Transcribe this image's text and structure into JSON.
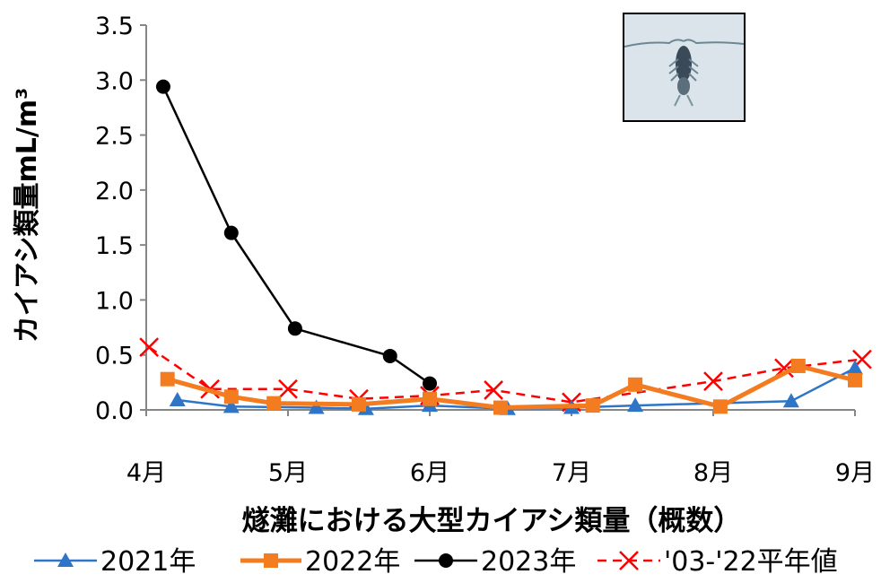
{
  "chart_data": {
    "type": "line",
    "title": "",
    "xlabel": "燧灘における大型カイアシ類量（概数）",
    "ylabel": "カイアシ類量mL/m³",
    "ylim": [
      0,
      3.5
    ],
    "yticks": [
      "0.0",
      "0.5",
      "1.0",
      "1.5",
      "2.0",
      "2.5",
      "3.0",
      "3.5"
    ],
    "yticks_values": [
      0,
      0.5,
      1,
      1.5,
      2,
      2.5,
      3,
      3.5
    ],
    "xlim": [
      4,
      9
    ],
    "xticks": [
      "4月",
      "5月",
      "6月",
      "7月",
      "8月",
      "9月"
    ],
    "xticks_values": [
      4,
      5,
      6,
      7,
      8,
      9
    ],
    "grid": false,
    "legend_position": "bottom",
    "series": [
      {
        "name": "2021年",
        "color": "#2e75c8",
        "marker": "triangle",
        "dash": "none",
        "x": [
          4.22,
          4.6,
          5.2,
          5.55,
          6.0,
          6.55,
          7.0,
          7.45,
          8.55,
          9.0
        ],
        "y": [
          0.09,
          0.03,
          0.02,
          0.01,
          0.04,
          0.01,
          0.02,
          0.04,
          0.08,
          0.38
        ]
      },
      {
        "name": "2022年",
        "color": "#f47c20",
        "marker": "square",
        "dash": "none",
        "x": [
          4.15,
          4.6,
          4.9,
          5.5,
          6.0,
          6.5,
          7.15,
          7.45,
          8.05,
          8.6,
          9.0
        ],
        "y": [
          0.28,
          0.12,
          0.06,
          0.05,
          0.1,
          0.02,
          0.04,
          0.23,
          0.03,
          0.4,
          0.27
        ]
      },
      {
        "name": "2023年",
        "color": "#000000",
        "marker": "circle",
        "dash": "none",
        "x": [
          4.12,
          4.6,
          5.05,
          5.72,
          6.0
        ],
        "y": [
          2.94,
          1.61,
          0.74,
          0.49,
          0.24
        ]
      },
      {
        "name": "'03-'22平年値",
        "color": "#ff0000",
        "marker": "x",
        "dash": "dashed",
        "x": [
          4.02,
          4.45,
          5.0,
          5.5,
          6.0,
          6.45,
          7.0,
          8.0,
          8.5,
          9.05
        ],
        "y": [
          0.57,
          0.19,
          0.19,
          0.1,
          0.13,
          0.18,
          0.07,
          0.26,
          0.38,
          0.46
        ]
      }
    ]
  }
}
